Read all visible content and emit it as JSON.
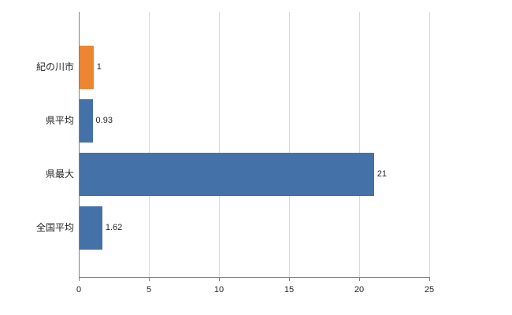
{
  "chart_data": {
    "type": "bar",
    "orientation": "horizontal",
    "title": "",
    "xlabel": "",
    "ylabel": "",
    "categories": [
      "紀の川市",
      "県平均",
      "県最大",
      "全国平均"
    ],
    "values": [
      1,
      0.93,
      21,
      1.62
    ],
    "value_labels": [
      "1",
      "0.93",
      "21",
      "1.62"
    ],
    "bar_colors": [
      "#ED8531",
      "#4472A8",
      "#4472A8",
      "#4472A8"
    ],
    "xlim": [
      0,
      25
    ],
    "x_ticks": [
      0,
      5,
      10,
      15,
      20,
      25
    ],
    "x_tick_labels": [
      "0",
      "5",
      "10",
      "15",
      "20",
      "25"
    ],
    "grid": "vertical",
    "gridline_color": "#d9d9d9",
    "axis_color": "#808080",
    "legend": "none"
  }
}
